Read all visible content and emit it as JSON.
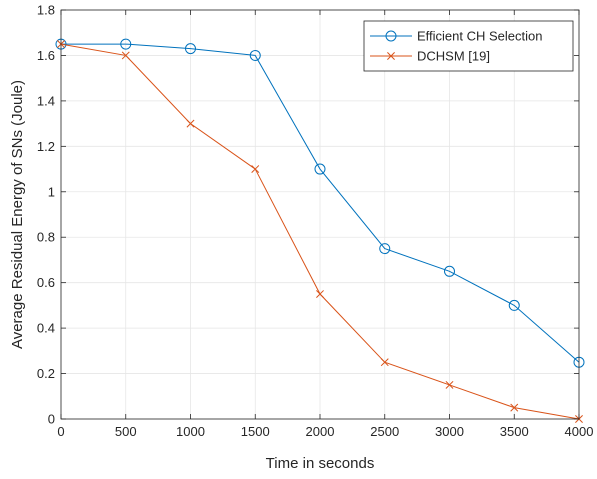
{
  "chart_data": {
    "type": "line",
    "title": "",
    "xlabel": "Time in seconds",
    "ylabel": "Average Residual Energy of SNs (Joule)",
    "xlim": [
      0,
      4000
    ],
    "ylim": [
      0,
      1.8
    ],
    "xticks": [
      "0",
      "500",
      "1000",
      "1500",
      "2000",
      "2500",
      "3000",
      "3500",
      "4000"
    ],
    "yticks": [
      "0",
      "0.2",
      "0.4",
      "0.6",
      "0.8",
      "1",
      "1.2",
      "1.4",
      "1.6",
      "1.8"
    ],
    "grid": true,
    "legend_position": "top-right",
    "x": [
      0,
      500,
      1000,
      1500,
      2000,
      2500,
      3000,
      3500,
      4000
    ],
    "series": [
      {
        "name": "Efficient CH Selection",
        "marker": "circle",
        "color": "#0072BD",
        "values": [
          1.65,
          1.65,
          1.63,
          1.6,
          1.1,
          0.75,
          0.65,
          0.5,
          0.25
        ]
      },
      {
        "name": "DCHSM [19]",
        "marker": "x",
        "color": "#D95319",
        "values": [
          1.65,
          1.6,
          1.3,
          1.1,
          0.55,
          0.25,
          0.15,
          0.05,
          0.0
        ]
      }
    ]
  }
}
